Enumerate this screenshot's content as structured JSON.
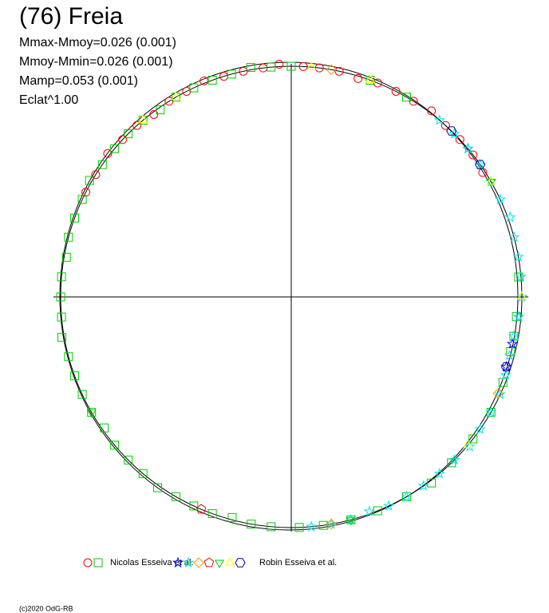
{
  "chart_data": {
    "type": "polar",
    "title": "(76) Freia",
    "stats": [
      "Mmax-Mmoy=0.026 (0.001)",
      "Mmoy-Mmin=0.026 (0.001)",
      "Mamp=0.053 (0.001)",
      "Eclat^1.00"
    ],
    "copyright": "(c)2020 OdG-RB",
    "groups": [
      {
        "name": "Nicolas Esseiva et al.",
        "series": [
          {
            "marker": "circle",
            "color": "#ff0000",
            "theta": [
              -63,
              -58,
              -52,
              -47,
              -42,
              -37,
              -32,
              -27,
              -22,
              -17,
              -12,
              -7,
              -3,
              3,
              7,
              12,
              17,
              22,
              27,
              32,
              37,
              42,
              47,
              52,
              57
            ],
            "r": [
              1,
              1,
              1.01,
              1,
              1,
              0.99,
              1,
              1,
              1.01,
              1,
              1,
              1,
              1.01,
              1,
              1,
              1,
              0.99,
              1,
              1,
              1,
              1.01,
              1,
              1,
              1,
              0.99
            ]
          },
          {
            "marker": "square",
            "color": "#00cc00",
            "theta": [
              -175,
              -170,
              -165,
              -160,
              -155,
              -150,
              -145,
              -140,
              -135,
              -130,
              -125,
              -120,
              -115,
              -110,
              -105,
              -100,
              -95,
              -90,
              -85,
              -80,
              -75,
              -70,
              -65,
              -60,
              -55,
              -50,
              -45,
              -40,
              -35,
              -30,
              -25,
              -20,
              -15,
              -10,
              -5,
              0,
              20,
              30,
              85,
              95,
              100,
              104,
              112,
              120,
              128,
              136,
              143,
              150,
              158,
              165,
              172,
              178
            ],
            "r": [
              1,
              1,
              0.99,
              1,
              1,
              1,
              1.01,
              1,
              1,
              1,
              0.99,
              1,
              1,
              1,
              1,
              1.01,
              1,
              1,
              1,
              0.99,
              1,
              1,
              1,
              1.01,
              1,
              1,
              1,
              1,
              0.99,
              1,
              1,
              1,
              1,
              1.01,
              1,
              1,
              1,
              1,
              0.99,
              0.98,
              0.98,
              0.98,
              0.99,
              1,
              1,
              1,
              1.01,
              1,
              1,
              1,
              1,
              1
            ]
          }
        ]
      },
      {
        "name": "Robin Esseiva et al.",
        "series": [
          {
            "marker": "star",
            "color": "#0000ff",
            "theta": [
              50,
              95,
              102,
              108
            ],
            "r": [
              1,
              0.99,
              0.98,
              0.98
            ]
          },
          {
            "marker": "star",
            "color": "#00e5e5",
            "theta": [
              40,
              45,
              50,
              55,
              60,
              65,
              70,
              75,
              80,
              85,
              90,
              95,
              100,
              105,
              110,
              115,
              120,
              125,
              130,
              135,
              140,
              145,
              150,
              155,
              160,
              165,
              170,
              175
            ],
            "r": [
              1,
              1,
              1,
              1,
              1,
              1,
              1.01,
              1,
              1,
              1,
              1,
              0.99,
              0.98,
              0.98,
              0.99,
              1,
              1,
              1,
              1.01,
              1,
              1,
              1,
              1,
              1,
              0.99,
              1,
              1,
              1
            ]
          },
          {
            "marker": "diamond",
            "color": "#ff9900",
            "theta": [
              10,
              115,
              170
            ],
            "r": [
              1,
              0.99,
              1
            ]
          },
          {
            "marker": "pentagon",
            "color": "#ff0000",
            "theta": [
              -157
            ],
            "r": [
              1
            ]
          },
          {
            "marker": "triangle-down",
            "color": "#00cc00",
            "theta": [
              -120,
              60,
              165
            ],
            "r": [
              1,
              1,
              1
            ]
          },
          {
            "marker": "triangle-up",
            "color": "#ffff00",
            "theta": [
              -40,
              -30,
              5,
              20,
              60,
              90,
              130
            ],
            "r": [
              1,
              1,
              1,
              1,
              1,
              1,
              1
            ]
          },
          {
            "marker": "hexagon",
            "color": "#0000aa",
            "theta": [
              44,
              55,
              108
            ],
            "r": [
              1,
              1,
              0.98
            ]
          }
        ]
      }
    ]
  }
}
